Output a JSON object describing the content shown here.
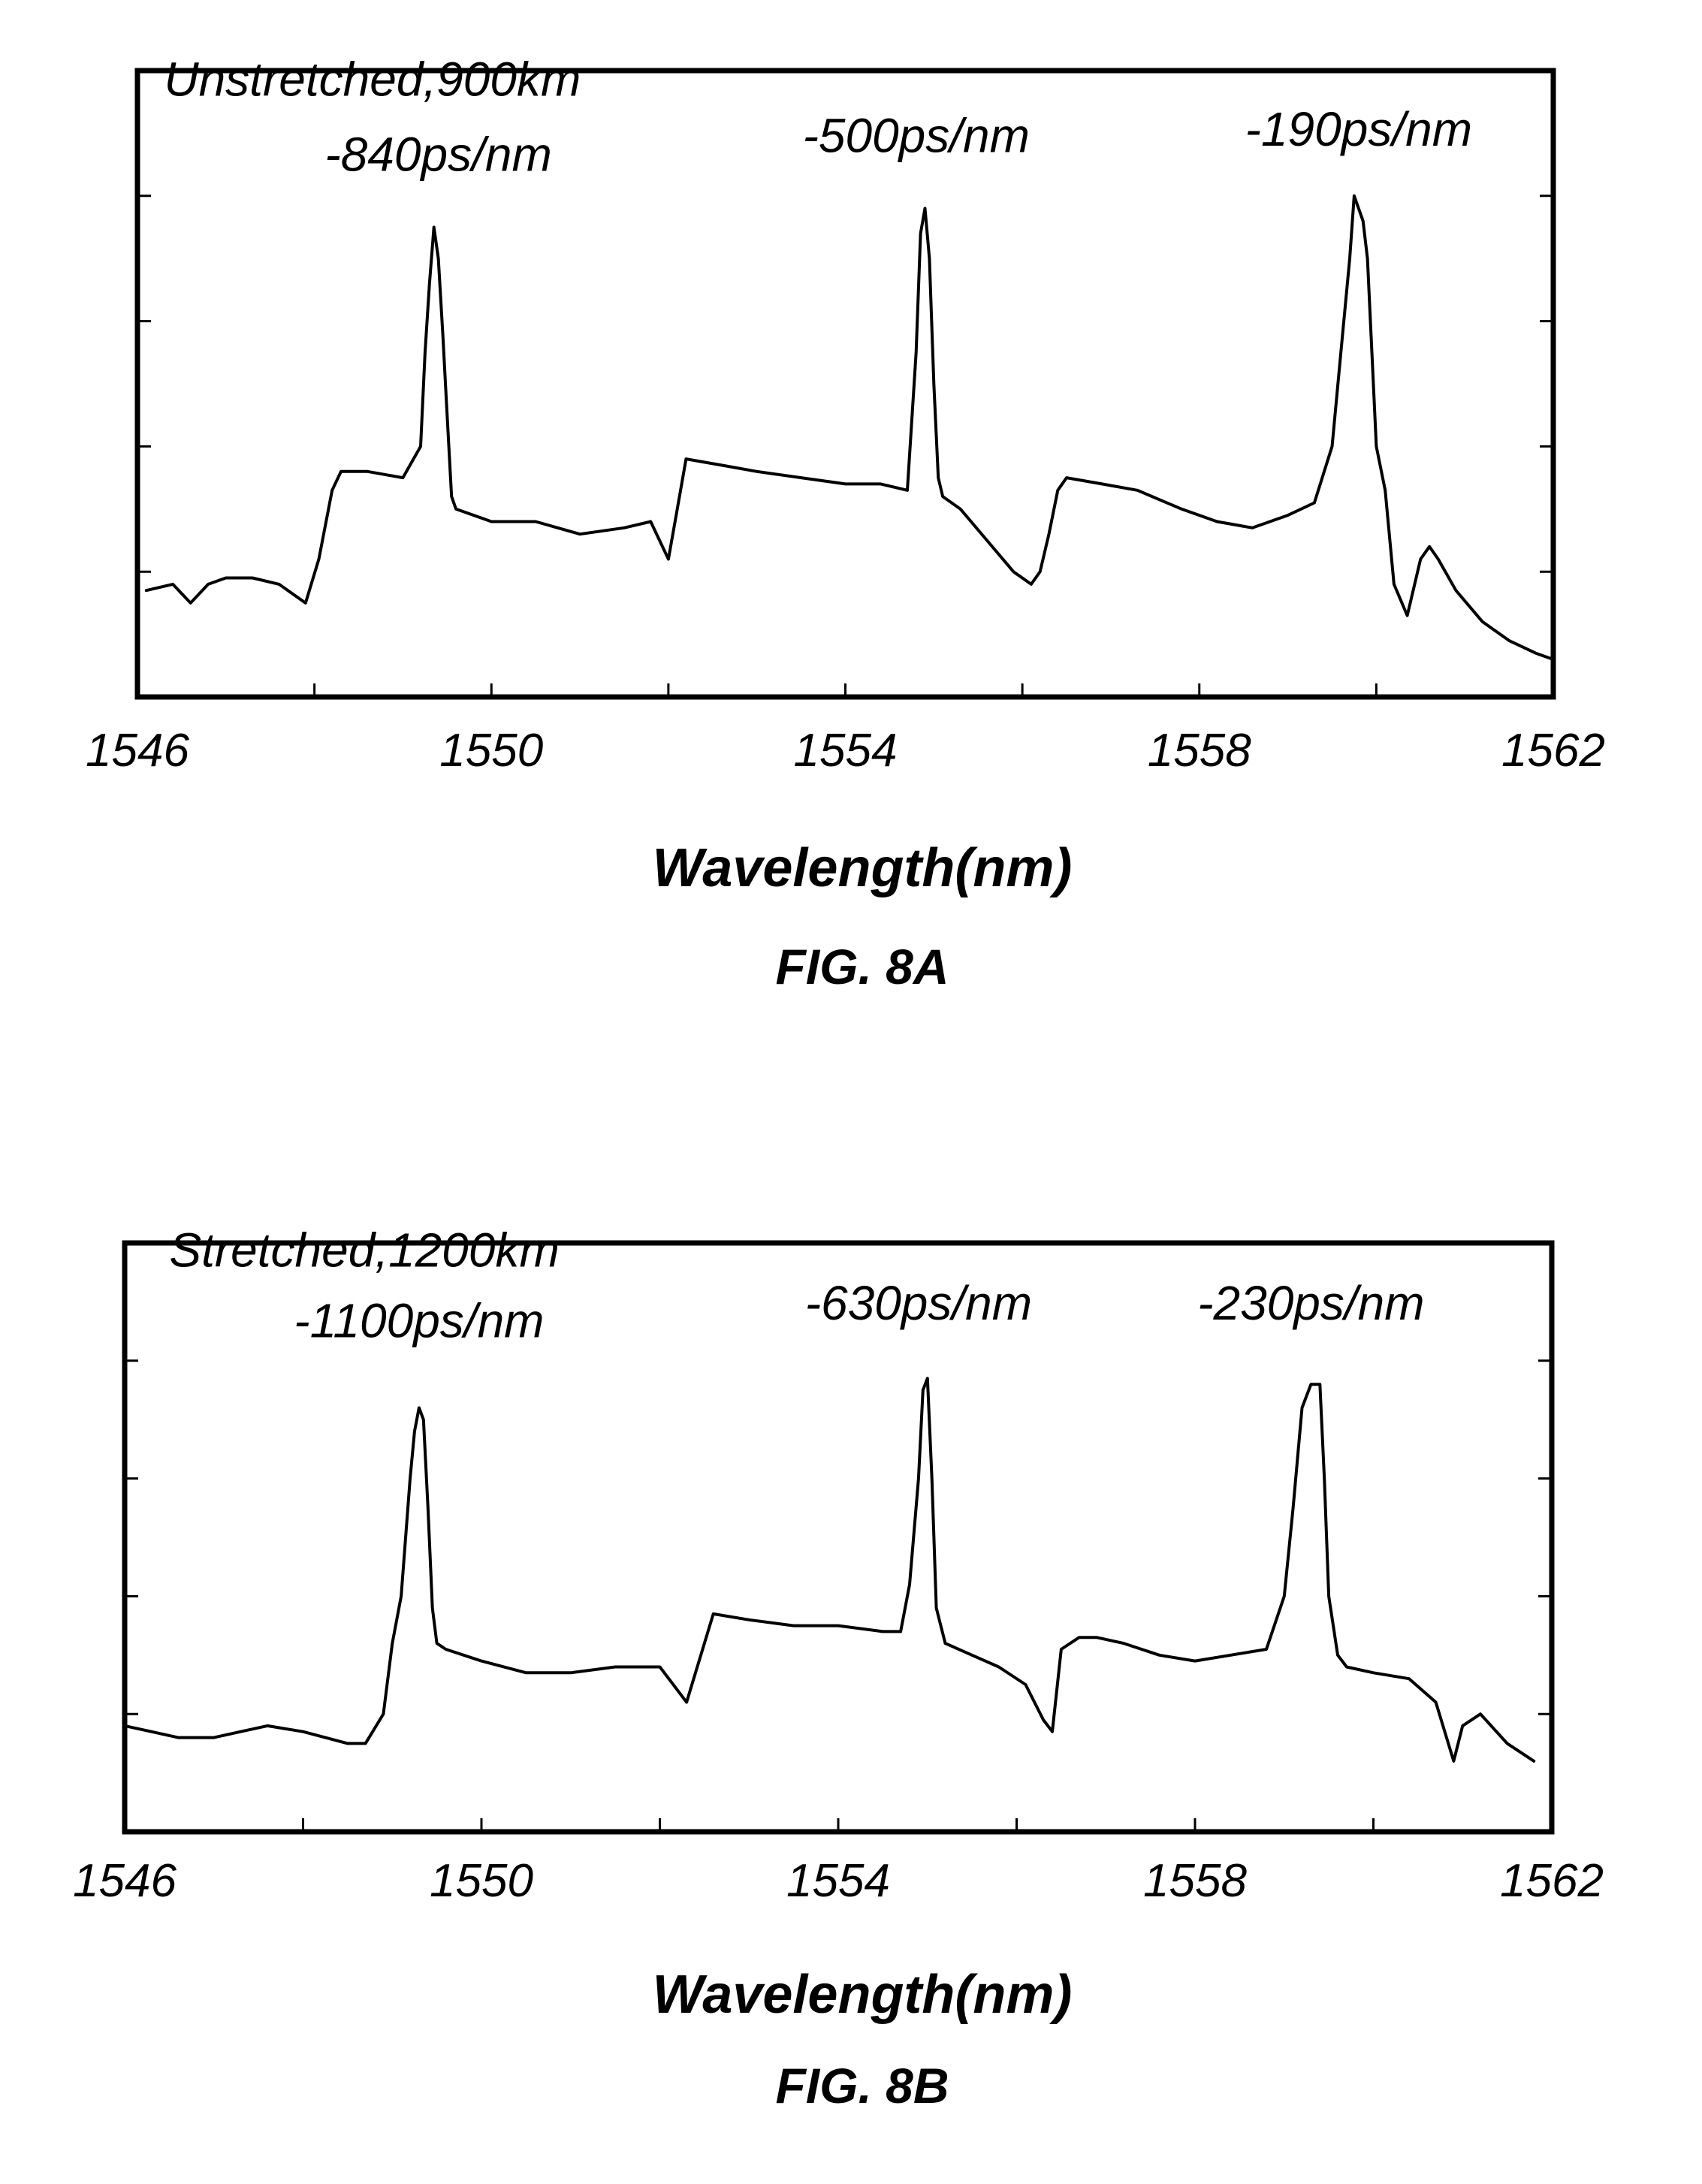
{
  "chart_data": [
    {
      "type": "line",
      "figure_label": "FIG. 8A",
      "xlabel": "Wavelength(nm)",
      "ylabel": "",
      "xlim": [
        1546,
        1562
      ],
      "x_tick_labels": [
        "1546",
        "1550",
        "1554",
        "1558",
        "1562"
      ],
      "x_tick_values": [
        1546,
        1548,
        1550,
        1552,
        1554,
        1556,
        1558,
        1560,
        1562
      ],
      "y_tick_count": 4,
      "ylim": [
        0,
        100
      ],
      "grid": false,
      "annotations": [
        {
          "text": "Unstretched,900km",
          "x": 1546.3,
          "y": 96
        },
        {
          "text": "-840ps/nm",
          "x": 1549.4,
          "y": 84
        },
        {
          "text": "-500ps/nm",
          "x": 1554.8,
          "y": 87
        },
        {
          "text": "-190ps/nm",
          "x": 1559.8,
          "y": 88
        }
      ],
      "series": [
        {
          "x": [
            1546.1,
            1546.4,
            1546.6,
            1546.8,
            1547.0,
            1547.3,
            1547.6,
            1547.9,
            1548.05,
            1548.2,
            1548.3,
            1548.6,
            1549.0,
            1549.2,
            1549.25,
            1549.3,
            1549.35,
            1549.4,
            1549.45,
            1549.5,
            1549.55,
            1549.6,
            1550.0,
            1550.5,
            1551.0,
            1551.5,
            1551.8,
            1552.0,
            1552.1,
            1552.2,
            1552.6,
            1553.0,
            1553.5,
            1554.0,
            1554.4,
            1554.7,
            1554.8,
            1554.85,
            1554.9,
            1554.95,
            1555.0,
            1555.05,
            1555.1,
            1555.3,
            1555.6,
            1555.9,
            1556.1,
            1556.2,
            1556.3,
            1556.4,
            1556.5,
            1556.9,
            1557.3,
            1557.8,
            1558.2,
            1558.6,
            1559.0,
            1559.3,
            1559.5,
            1559.6,
            1559.7,
            1559.75,
            1559.8,
            1559.85,
            1559.9,
            1559.95,
            1560.0,
            1560.1,
            1560.2,
            1560.35,
            1560.5,
            1560.6,
            1560.7,
            1560.9,
            1561.2,
            1561.5,
            1561.8,
            1562.0
          ],
          "y": [
            17,
            18,
            15,
            18,
            19,
            19,
            18,
            15,
            22,
            33,
            36,
            36,
            35,
            40,
            55,
            66,
            75,
            70,
            58,
            45,
            32,
            30,
            28,
            28,
            26,
            27,
            28,
            22,
            30,
            38,
            37,
            36,
            35,
            34,
            34,
            33,
            55,
            74,
            78,
            70,
            50,
            35,
            32,
            30,
            25,
            20,
            18,
            20,
            26,
            33,
            35,
            34,
            33,
            30,
            28,
            27,
            29,
            31,
            40,
            55,
            70,
            80,
            78,
            76,
            70,
            55,
            40,
            33,
            18,
            13,
            22,
            24,
            22,
            17,
            12,
            9,
            7,
            6
          ]
        }
      ]
    },
    {
      "type": "line",
      "figure_label": "FIG. 8B",
      "xlabel": "Wavelength(nm)",
      "ylabel": "",
      "xlim": [
        1546,
        1562
      ],
      "x_tick_labels": [
        "1546",
        "1550",
        "1554",
        "1558",
        "1562"
      ],
      "x_tick_values": [
        1546,
        1548,
        1550,
        1552,
        1554,
        1556,
        1558,
        1560,
        1562
      ],
      "y_tick_count": 4,
      "ylim": [
        0,
        100
      ],
      "grid": false,
      "annotations": [
        {
          "text": "Stretched,1200km",
          "x": 1546.5,
          "y": 96
        },
        {
          "text": "-1100ps/nm",
          "x": 1549.3,
          "y": 84
        },
        {
          "text": "-630ps/nm",
          "x": 1554.9,
          "y": 87
        },
        {
          "text": "-230ps/nm",
          "x": 1559.3,
          "y": 87
        }
      ],
      "series": [
        {
          "x": [
            1546.0,
            1546.3,
            1546.6,
            1547.0,
            1547.3,
            1547.6,
            1548.0,
            1548.5,
            1548.7,
            1548.9,
            1549.0,
            1549.1,
            1549.2,
            1549.25,
            1549.3,
            1549.35,
            1549.4,
            1549.45,
            1549.5,
            1549.6,
            1550.0,
            1550.5,
            1551.0,
            1551.5,
            1552.0,
            1552.3,
            1552.6,
            1553.0,
            1553.5,
            1554.0,
            1554.5,
            1554.7,
            1554.8,
            1554.9,
            1554.95,
            1555.0,
            1555.05,
            1555.1,
            1555.2,
            1555.5,
            1555.8,
            1556.1,
            1556.3,
            1556.4,
            1556.5,
            1556.7,
            1556.9,
            1557.2,
            1557.6,
            1558.0,
            1558.4,
            1558.8,
            1559.0,
            1559.1,
            1559.2,
            1559.3,
            1559.4,
            1559.45,
            1559.5,
            1559.6,
            1559.7,
            1560.0,
            1560.4,
            1560.7,
            1560.9,
            1561.0,
            1561.2,
            1561.5,
            1561.8
          ],
          "y": [
            18,
            17,
            16,
            16,
            17,
            18,
            17,
            15,
            15,
            20,
            32,
            40,
            60,
            68,
            72,
            70,
            55,
            38,
            32,
            31,
            29,
            27,
            27,
            28,
            28,
            22,
            37,
            36,
            35,
            35,
            34,
            34,
            42,
            60,
            75,
            77,
            60,
            38,
            32,
            30,
            28,
            25,
            19,
            17,
            31,
            33,
            33,
            32,
            30,
            29,
            30,
            31,
            40,
            55,
            72,
            76,
            76,
            60,
            40,
            30,
            28,
            27,
            26,
            22,
            12,
            18,
            20,
            15,
            12
          ]
        }
      ]
    }
  ]
}
